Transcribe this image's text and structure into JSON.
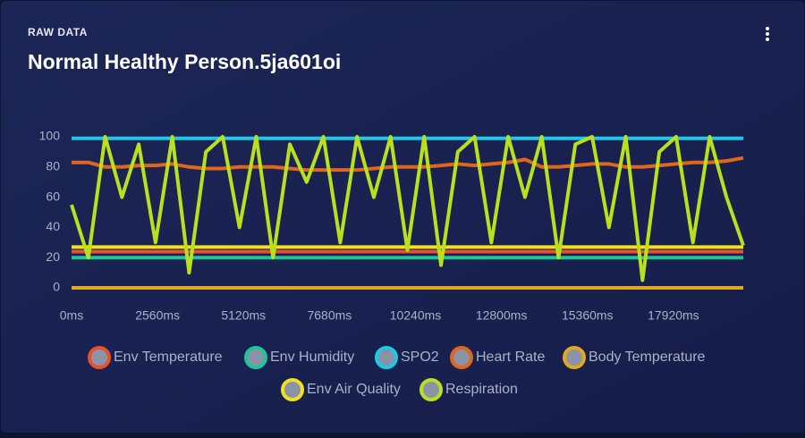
{
  "header": {
    "kicker": "RAW DATA"
  },
  "chart_data": {
    "type": "line",
    "title": "Normal Healthy Person.5ja601oi",
    "x": [
      0,
      500,
      1000,
      1500,
      2000,
      2500,
      3000,
      3500,
      4000,
      4500,
      5000,
      5500,
      6000,
      6500,
      7000,
      7500,
      8000,
      8500,
      9000,
      9500,
      10000,
      10500,
      11000,
      11500,
      12000,
      12500,
      13000,
      13500,
      14000,
      14500,
      15000,
      15500,
      16000,
      16500,
      17000,
      17500,
      18000,
      18500,
      19000,
      19500,
      20000
    ],
    "xlim": [
      0,
      20000
    ],
    "xticks": [
      {
        "value": 0,
        "label": "0ms"
      },
      {
        "value": 2560,
        "label": "2560ms"
      },
      {
        "value": 5120,
        "label": "5120ms"
      },
      {
        "value": 7680,
        "label": "7680ms"
      },
      {
        "value": 10240,
        "label": "10240ms"
      },
      {
        "value": 12800,
        "label": "12800ms"
      },
      {
        "value": 15360,
        "label": "15360ms"
      },
      {
        "value": 17920,
        "label": "17920ms"
      }
    ],
    "ylim": [
      0,
      100
    ],
    "yticks": [
      0,
      20,
      40,
      60,
      80,
      100
    ],
    "series": [
      {
        "name": "Env Temperature",
        "color": "#e8502e",
        "values": [
          24,
          24,
          24,
          24,
          24,
          24,
          24,
          24,
          24,
          24,
          24,
          24,
          24,
          24,
          24,
          24,
          24,
          24,
          24,
          24,
          24,
          24,
          24,
          24,
          24,
          24,
          24,
          24,
          24,
          24,
          24,
          24,
          24,
          24,
          24,
          24,
          24,
          24,
          24,
          24,
          24
        ]
      },
      {
        "name": "Env Humidity",
        "color": "#1fc49a",
        "values": [
          20,
          20,
          20,
          20,
          20,
          20,
          20,
          20,
          20,
          20,
          20,
          20,
          20,
          20,
          20,
          20,
          20,
          20,
          20,
          20,
          20,
          20,
          20,
          20,
          20,
          20,
          20,
          20,
          20,
          20,
          20,
          20,
          20,
          20,
          20,
          20,
          20,
          20,
          20,
          20,
          20
        ]
      },
      {
        "name": "SPO2",
        "color": "#1ec8e8",
        "values": [
          99,
          99,
          99,
          99,
          99,
          99,
          99,
          99,
          99,
          99,
          99,
          99,
          99,
          99,
          99,
          99,
          99,
          99,
          99,
          99,
          99,
          99,
          99,
          99,
          99,
          99,
          99,
          99,
          99,
          99,
          99,
          99,
          99,
          99,
          99,
          99,
          99,
          99,
          99,
          99,
          99
        ]
      },
      {
        "name": "Heart Rate",
        "color": "#e0661e",
        "values": [
          83,
          83,
          80,
          80,
          81,
          81,
          82,
          80,
          79,
          79,
          80,
          80,
          80,
          79,
          78,
          78,
          78,
          78,
          79,
          80,
          80,
          80,
          81,
          82,
          81,
          82,
          83,
          85,
          80,
          80,
          81,
          82,
          82,
          80,
          80,
          81,
          82,
          83,
          83,
          84,
          86
        ]
      },
      {
        "name": "Body Temperature",
        "color": "#e0a81e",
        "values": [
          0,
          0,
          0,
          0,
          0,
          0,
          0,
          0,
          0,
          0,
          0,
          0,
          0,
          0,
          0,
          0,
          0,
          0,
          0,
          0,
          0,
          0,
          0,
          0,
          0,
          0,
          0,
          0,
          0,
          0,
          0,
          0,
          0,
          0,
          0,
          0,
          0,
          0,
          0,
          0,
          0
        ]
      },
      {
        "name": "Env Air Quality",
        "color": "#f0e020",
        "values": [
          27,
          27,
          27,
          27,
          27,
          27,
          27,
          27,
          27,
          27,
          27,
          27,
          27,
          27,
          27,
          27,
          27,
          27,
          27,
          27,
          27,
          27,
          27,
          27,
          27,
          27,
          27,
          27,
          27,
          27,
          27,
          27,
          27,
          27,
          27,
          27,
          27,
          27,
          27,
          27,
          27
        ]
      },
      {
        "name": "Respiration",
        "color": "#b8e01e",
        "values": [
          55,
          20,
          100,
          60,
          95,
          30,
          100,
          10,
          90,
          100,
          40,
          100,
          20,
          95,
          70,
          100,
          30,
          100,
          60,
          100,
          25,
          100,
          15,
          90,
          100,
          30,
          100,
          60,
          100,
          20,
          95,
          100,
          40,
          100,
          5,
          90,
          100,
          30,
          100,
          60,
          28
        ]
      }
    ]
  }
}
